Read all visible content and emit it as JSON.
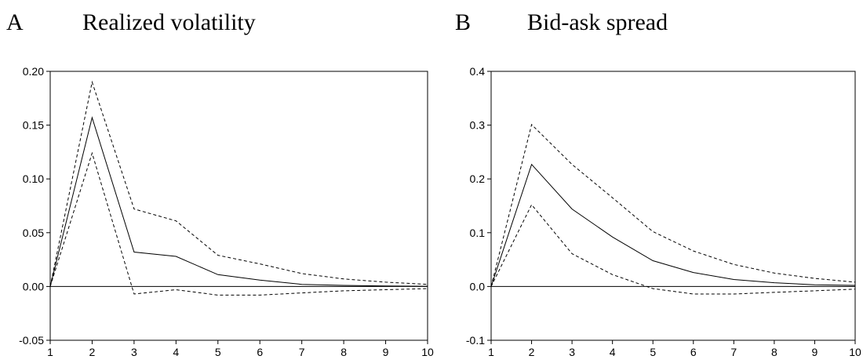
{
  "chart_data": [
    {
      "type": "line",
      "panel_letter": "A",
      "title": "Realized volatility",
      "x": [
        1,
        2,
        3,
        4,
        5,
        6,
        7,
        8,
        9,
        10
      ],
      "xlim": [
        1,
        10
      ],
      "ylim": [
        -0.05,
        0.2
      ],
      "yticks": [
        "0.20",
        "0.15",
        "0.10",
        "0.05",
        "0.00",
        "-0.05"
      ],
      "ytick_values": [
        0.2,
        0.15,
        0.1,
        0.05,
        0.0,
        -0.05
      ],
      "xticks": [
        "1",
        "2",
        "3",
        "4",
        "5",
        "6",
        "7",
        "8",
        "9",
        "10"
      ],
      "series": [
        {
          "style": "solid",
          "values": [
            0.0,
            0.157,
            0.032,
            0.028,
            0.011,
            0.006,
            0.002,
            0.001,
            0.0005,
            0.0002
          ]
        },
        {
          "style": "dashed",
          "values": [
            0.0,
            0.19,
            0.072,
            0.061,
            0.029,
            0.021,
            0.012,
            0.007,
            0.004,
            0.002
          ]
        },
        {
          "style": "dashed",
          "values": [
            0.0,
            0.124,
            -0.007,
            -0.003,
            -0.008,
            -0.008,
            -0.006,
            -0.004,
            -0.003,
            -0.002
          ]
        }
      ],
      "zero_line": true,
      "grid": false
    },
    {
      "type": "line",
      "panel_letter": "B",
      "title": "Bid-ask spread",
      "x": [
        1,
        2,
        3,
        4,
        5,
        6,
        7,
        8,
        9,
        10
      ],
      "xlim": [
        1,
        10
      ],
      "ylim": [
        -0.1,
        0.4
      ],
      "yticks": [
        "0.4",
        "0.3",
        "0.2",
        "0.1",
        "0.0",
        "-0.1"
      ],
      "ytick_values": [
        0.4,
        0.3,
        0.2,
        0.1,
        0.0,
        -0.1
      ],
      "xticks": [
        "1",
        "2",
        "3",
        "4",
        "5",
        "6",
        "7",
        "8",
        "9",
        "10"
      ],
      "series": [
        {
          "style": "solid",
          "values": [
            0.0,
            0.227,
            0.144,
            0.092,
            0.048,
            0.026,
            0.013,
            0.007,
            0.003,
            0.002
          ]
        },
        {
          "style": "dashed",
          "values": [
            0.0,
            0.301,
            0.227,
            0.165,
            0.102,
            0.066,
            0.041,
            0.025,
            0.015,
            0.008
          ]
        },
        {
          "style": "dashed",
          "values": [
            0.0,
            0.152,
            0.061,
            0.022,
            -0.004,
            -0.014,
            -0.014,
            -0.011,
            -0.008,
            -0.005
          ]
        }
      ],
      "zero_line": true,
      "grid": false
    }
  ]
}
